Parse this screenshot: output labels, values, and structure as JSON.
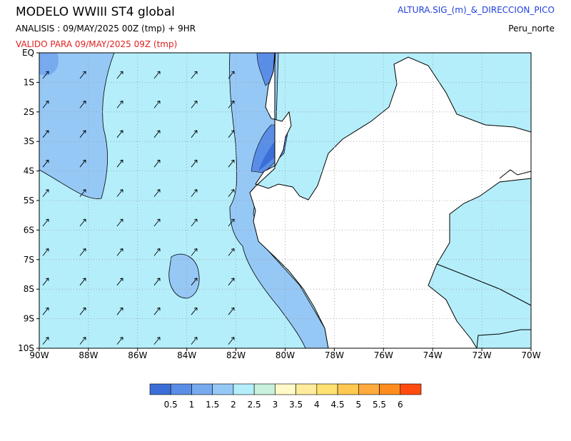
{
  "header": {
    "title": "MODELO WWIII ST4 global",
    "analysis": "ANALISIS : 09/MAY/2025 00Z  (tmp) + 9HR",
    "valid": "VALIDO PARA  09/MAY/2025 09Z  (tmp)",
    "variable": "ALTURA.SIG_(m)_&_DIRECCION_PICO",
    "region": "Peru_norte"
  },
  "map": {
    "lat_labels": [
      "EQ",
      "1S",
      "2S",
      "3S",
      "4S",
      "5S",
      "6S",
      "7S",
      "8S",
      "9S",
      "10S"
    ],
    "lon_labels": [
      "90W",
      "88W",
      "86W",
      "84W",
      "82W",
      "80W",
      "78W",
      "76W",
      "74W",
      "72W",
      "70W"
    ]
  },
  "legend": {
    "colors": [
      "#3c6ed8",
      "#5a8ee6",
      "#78aaf0",
      "#96c8f6",
      "#b4eefa",
      "#c8f0dc",
      "#fffac8",
      "#ffec9c",
      "#ffe070",
      "#ffc850",
      "#ffaa3c",
      "#ff8c1e",
      "#ff4a10"
    ],
    "labels": [
      "0.5",
      "1",
      "1.5",
      "2",
      "2.5",
      "3",
      "3.5",
      "4",
      "4.5",
      "5",
      "5.5",
      "6"
    ]
  }
}
